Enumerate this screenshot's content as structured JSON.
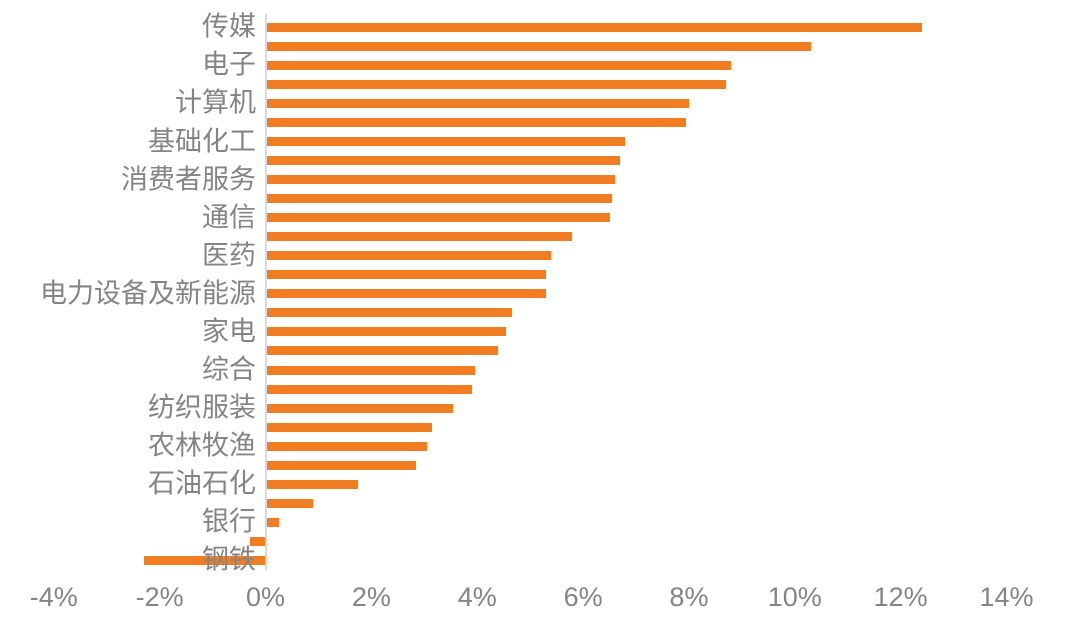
{
  "chart_data": {
    "type": "bar",
    "orientation": "horizontal",
    "title": "",
    "unit": "%",
    "grid": "off",
    "legend": "none",
    "category_label_interval": 2,
    "categories": [
      "传媒",
      "",
      "电子",
      "",
      "计算机",
      "",
      "基础化工",
      "",
      "消费者服务",
      "",
      "通信",
      "",
      "医药",
      "",
      "电力设备及新能源",
      "",
      "家电",
      "",
      "综合",
      "",
      "纺织服装",
      "",
      "农林牧渔",
      "",
      "石油石化",
      "",
      "银行",
      "",
      "钢铁"
    ],
    "values": [
      12.4,
      10.3,
      8.8,
      8.7,
      8.0,
      7.95,
      6.8,
      6.7,
      6.6,
      6.55,
      6.5,
      5.8,
      5.4,
      5.3,
      5.3,
      4.65,
      4.55,
      4.4,
      3.95,
      3.9,
      3.55,
      3.15,
      3.05,
      2.85,
      1.75,
      0.9,
      0.25,
      -0.3,
      -2.3
    ],
    "x_ticks": {
      "labels": [
        "-4%",
        "-2%",
        "0%",
        "2%",
        "4%",
        "6%",
        "8%",
        "10%",
        "12%",
        "14%"
      ],
      "values": [
        -4,
        -2,
        0,
        2,
        4,
        6,
        8,
        10,
        12,
        14
      ]
    },
    "xlim": [
      -4,
      14
    ],
    "colors": {
      "bar": "#F07D22",
      "axis_line": "#D9D9D9",
      "text": "#848484"
    }
  }
}
